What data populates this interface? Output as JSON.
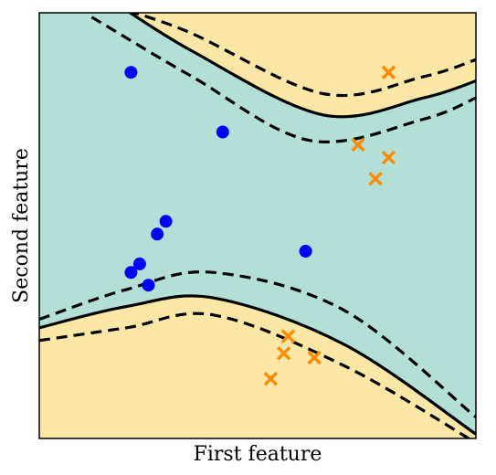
{
  "chart_data": {
    "type": "scatter",
    "title": "",
    "xlabel": "First feature",
    "ylabel": "Second feature",
    "xlim": [
      0,
      10
    ],
    "ylim": [
      0,
      10
    ],
    "grid": false,
    "legend": "none",
    "colors": {
      "region_inner": "#b2e0d6",
      "region_outer": "#fbe8a6",
      "class_a": "#0000ff",
      "class_b": "#ff8c00",
      "boundary": "#000000",
      "frame": "#000000"
    },
    "series": [
      {
        "marker": "circle",
        "color": "#0000ff",
        "points": [
          [
            2.1,
            8.6
          ],
          [
            4.2,
            7.2
          ],
          [
            2.9,
            5.1
          ],
          [
            2.7,
            4.8
          ],
          [
            6.1,
            4.4
          ],
          [
            2.3,
            4.1
          ],
          [
            2.1,
            3.9
          ],
          [
            2.5,
            3.6
          ]
        ]
      },
      {
        "marker": "x",
        "color": "#ff8c00",
        "points": [
          [
            8.0,
            8.6
          ],
          [
            7.3,
            6.9
          ],
          [
            8.0,
            6.6
          ],
          [
            7.7,
            6.1
          ],
          [
            5.7,
            2.4
          ],
          [
            5.6,
            2.0
          ],
          [
            6.3,
            1.9
          ],
          [
            5.3,
            1.4
          ]
        ]
      }
    ],
    "decision_boundary": {
      "upper_solid": [
        [
          1.5,
          10.4
        ],
        [
          3.5,
          9.1
        ],
        [
          6.5,
          7.6
        ],
        [
          8.8,
          8.0
        ],
        [
          10.0,
          8.4
        ]
      ],
      "upper_dash_a": [
        [
          0.9,
          10.4
        ],
        [
          3.3,
          9.6
        ],
        [
          6.5,
          8.1
        ],
        [
          8.8,
          8.5
        ],
        [
          10.0,
          8.9
        ]
      ],
      "upper_dash_b": [
        [
          1.2,
          9.9
        ],
        [
          3.5,
          8.5
        ],
        [
          6.2,
          7.0
        ],
        [
          8.8,
          7.5
        ],
        [
          10.0,
          8.0
        ]
      ],
      "lower_solid": [
        [
          0.0,
          2.6
        ],
        [
          2.0,
          3.1
        ],
        [
          4.0,
          3.3
        ],
        [
          7.0,
          2.2
        ],
        [
          10.0,
          0.1
        ]
      ],
      "lower_dash_a": [
        [
          0.0,
          2.8
        ],
        [
          2.0,
          3.5
        ],
        [
          4.0,
          3.9
        ],
        [
          7.0,
          3.0
        ],
        [
          10.0,
          0.5
        ]
      ],
      "lower_dash_b": [
        [
          0.0,
          2.3
        ],
        [
          2.0,
          2.6
        ],
        [
          4.0,
          2.9
        ],
        [
          7.0,
          1.7
        ],
        [
          10.0,
          -0.1
        ]
      ]
    }
  }
}
